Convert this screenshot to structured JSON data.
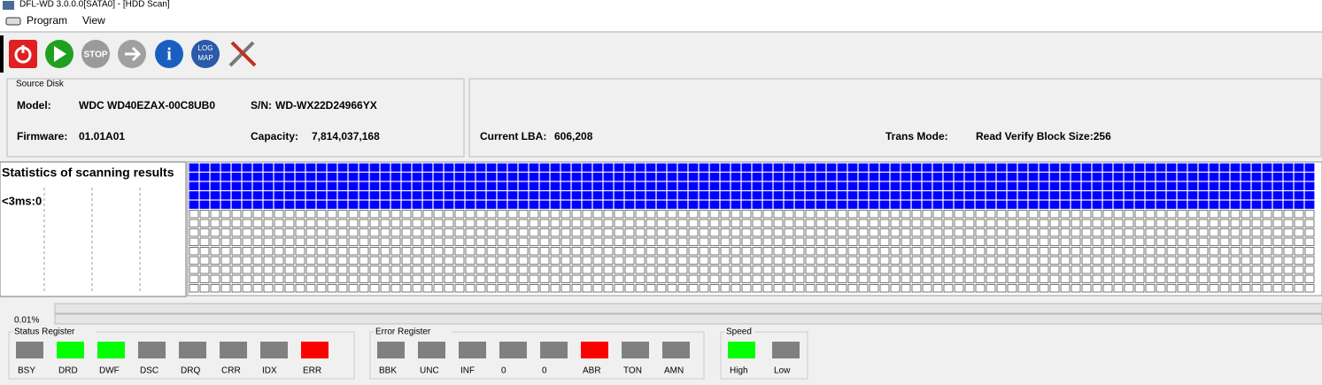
{
  "window": {
    "title": "DFL-WD 3.0.0.0[SATA0] - [HDD Scan]"
  },
  "menu": [
    "Program",
    "View"
  ],
  "toolbar": {
    "stop": "STOP",
    "log": "LOG",
    "map": "MAP"
  },
  "source_disk": {
    "title": "Source Disk",
    "model": {
      "label": "Model:",
      "value": "WDC WD40EZAX-00C8UB0"
    },
    "serial": {
      "label": "S/N:",
      "value": "WD-WX22D24966YX"
    },
    "firmware": {
      "label": "Firmware:",
      "value": "01.01A01"
    },
    "capacity": {
      "label": "Capacity:",
      "value": "7,814,037,168"
    }
  },
  "scan_info": {
    "current_lba": {
      "label": "Current LBA:",
      "value": "606,208"
    },
    "trans_mode": {
      "label": "Trans Mode:",
      "value": "Read Verify Block Size:256"
    }
  },
  "statistics": {
    "title": "Statistics of scanning results",
    "entries": [
      "<3ms:0"
    ]
  },
  "progress": {
    "label": "0.01%"
  },
  "registers": [
    {
      "title": "Status Register",
      "flags": [
        {
          "label": "BSY",
          "color": "#808080"
        },
        {
          "label": "DRD",
          "color": "#00ff00"
        },
        {
          "label": "DWF",
          "color": "#00ff00"
        },
        {
          "label": "DSC",
          "color": "#808080"
        },
        {
          "label": "DRQ",
          "color": "#808080"
        },
        {
          "label": "CRR",
          "color": "#808080"
        },
        {
          "label": "IDX",
          "color": "#808080"
        },
        {
          "label": "ERR",
          "color": "#ff0000"
        }
      ]
    },
    {
      "title": "Error Register",
      "flags": [
        {
          "label": "BBK",
          "color": "#808080"
        },
        {
          "label": "UNC",
          "color": "#808080"
        },
        {
          "label": "INF",
          "color": "#808080"
        },
        {
          "label": "0",
          "color": "#808080"
        },
        {
          "label": "0",
          "color": "#808080"
        },
        {
          "label": "ABR",
          "color": "#ff0000"
        },
        {
          "label": "TON",
          "color": "#808080"
        },
        {
          "label": "AMN",
          "color": "#808080"
        }
      ]
    },
    {
      "title": "Speed",
      "flags": [
        {
          "label": "High",
          "color": "#00ff00"
        },
        {
          "label": "Low",
          "color": "#808080"
        }
      ]
    }
  ]
}
